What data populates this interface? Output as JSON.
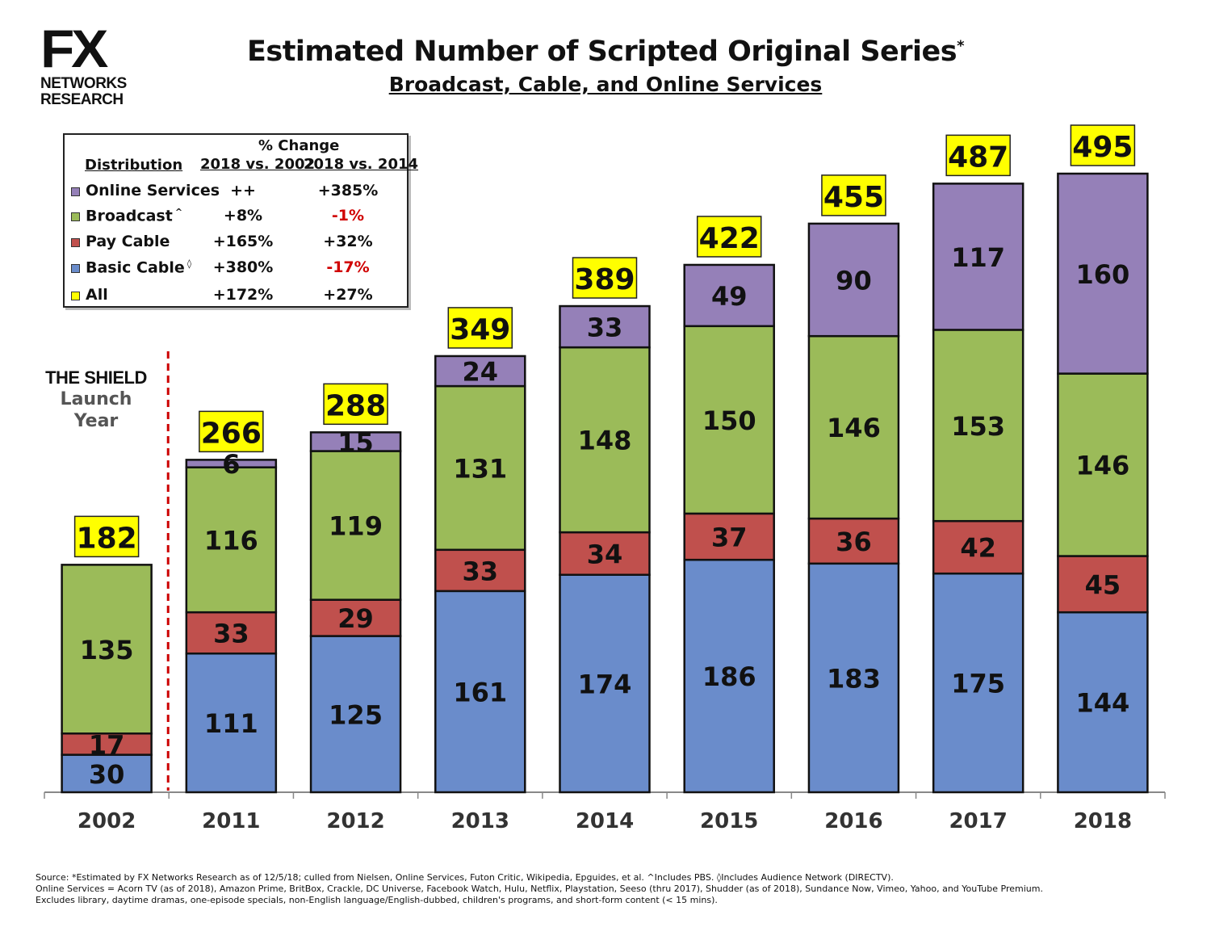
{
  "logo": {
    "mark": "FX",
    "line1": "NETWORKS",
    "line2": "RESEARCH"
  },
  "title": "Estimated Number of Scripted Original Series",
  "title_mark": "*",
  "subtitle": "Broadcast, Cable, and Online Services",
  "legend": {
    "header_top": "% Change",
    "col0": "Distribution",
    "col1": "2018 vs. 2002",
    "col2": "2018 vs. 2014",
    "rows": [
      {
        "name": "Online Services",
        "suffix": "",
        "v1": "++",
        "v2": "+385%",
        "v2_negative": false,
        "color": "#9580b8"
      },
      {
        "name": "Broadcast",
        "suffix": "^",
        "v1": "+8%",
        "v2": "-1%",
        "v2_negative": true,
        "color": "#9bbb59"
      },
      {
        "name": "Pay Cable",
        "suffix": "",
        "v1": "+165%",
        "v2": "+32%",
        "v2_negative": false,
        "color": "#c0504d"
      },
      {
        "name": "Basic Cable",
        "suffix": "◊",
        "v1": "+380%",
        "v2": "-17%",
        "v2_negative": true,
        "color": "#6a8ccb"
      },
      {
        "name": "All",
        "suffix": "",
        "v1": "+172%",
        "v2": "+27%",
        "v2_negative": false,
        "color": "#ffff00"
      }
    ]
  },
  "annotation": {
    "title": "THE SHIELD",
    "line1": "Launch",
    "line2": "Year"
  },
  "chart_data": {
    "type": "bar",
    "stacked": true,
    "categories": [
      "2002",
      "2011",
      "2012",
      "2013",
      "2014",
      "2015",
      "2016",
      "2017",
      "2018"
    ],
    "series": [
      {
        "name": "Basic Cable",
        "color": "#6a8ccb",
        "values": [
          30,
          111,
          125,
          161,
          174,
          186,
          183,
          175,
          144
        ]
      },
      {
        "name": "Pay Cable",
        "color": "#c0504d",
        "values": [
          17,
          33,
          29,
          33,
          34,
          37,
          36,
          42,
          45
        ]
      },
      {
        "name": "Broadcast",
        "color": "#9bbb59",
        "values": [
          135,
          116,
          119,
          131,
          148,
          150,
          146,
          153,
          146
        ]
      },
      {
        "name": "Online Services",
        "color": "#9580b8",
        "values": [
          null,
          6,
          15,
          24,
          33,
          49,
          90,
          117,
          160
        ]
      }
    ],
    "totals": [
      182,
      266,
      288,
      349,
      389,
      422,
      455,
      487,
      495
    ],
    "total_label_color": "#ffff00",
    "ylim": [
      0,
      495
    ],
    "grid": false,
    "legend_position": "top-left",
    "divider_after": "2002",
    "divider_color": "#cc0000"
  },
  "source": {
    "line1": "Source:  *Estimated by FX Networks Research as of 12/5/18; culled from Nielsen, Online Services, Futon Critic, Wikipedia, Epguides, et al.  ^Includes PBS.  ◊Includes Audience Network (DIRECTV).",
    "line2": "Online Services = Acorn TV (as of 2018), Amazon Prime, BritBox, Crackle, DC Universe, Facebook Watch, Hulu, Netflix, Playstation, Seeso (thru 2017), Shudder (as of 2018), Sundance Now, Vimeo, Yahoo, and YouTube Premium.",
    "line3": "Excludes library, daytime dramas, one-episode specials, non-English language/English-dubbed, children's programs, and short-form content (< 15 mins)."
  }
}
